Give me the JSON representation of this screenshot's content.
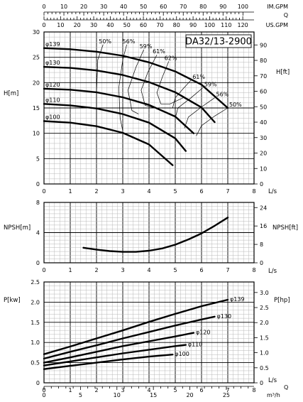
{
  "top_scales": {
    "q_label": "Q",
    "imp_gpm": {
      "unit": "IM.GPM",
      "ticks": [
        "0",
        "10",
        "20",
        "30",
        "40",
        "50",
        "60",
        "70",
        "80",
        "90",
        "100"
      ]
    },
    "us_gpm": {
      "unit": "US.GPM",
      "ticks": [
        "0",
        "10",
        "20",
        "30",
        "40",
        "50",
        "60",
        "70",
        "80",
        "90",
        "100",
        "110",
        "120"
      ]
    }
  },
  "bottom_scale": {
    "q_label": "Q",
    "unit": "m³/h",
    "ticks": [
      "0",
      "5",
      "10",
      "15",
      "20",
      "25"
    ]
  },
  "chart_data": [
    {
      "type": "line",
      "title": "DA32/13-2900",
      "xlabel": "L/s",
      "ylabel": "H[m]",
      "y2label": "H[ft]",
      "xlim": [
        0,
        8
      ],
      "ylim": [
        0,
        30
      ],
      "y2lim": [
        0,
        98.4
      ],
      "xticks": [
        "0",
        "1",
        "2",
        "3",
        "4",
        "5",
        "6",
        "7",
        "8"
      ],
      "yticks": [
        "0",
        "5",
        "10",
        "15",
        "20",
        "25",
        "30"
      ],
      "y2ticks": [
        "0",
        "10",
        "20",
        "30",
        "40",
        "50",
        "60",
        "70",
        "80",
        "90"
      ],
      "series": [
        {
          "name": "φ139",
          "x": [
            0,
            1,
            2,
            3,
            4,
            5,
            6,
            7
          ],
          "y": [
            26.8,
            26.6,
            26.1,
            25.3,
            24.0,
            22.2,
            19.6,
            15.0
          ]
        },
        {
          "name": "φ130",
          "x": [
            0,
            1,
            2,
            3,
            4,
            5,
            6,
            6.5
          ],
          "y": [
            23.1,
            22.9,
            22.4,
            21.5,
            20.1,
            18.1,
            15.1,
            12.2
          ]
        },
        {
          "name": "φ120",
          "x": [
            0,
            1,
            2,
            3,
            4,
            5,
            5.7
          ],
          "y": [
            18.8,
            18.6,
            18.1,
            17.1,
            15.6,
            13.3,
            10.0
          ]
        },
        {
          "name": "φ110",
          "x": [
            0,
            1,
            2,
            3,
            4,
            5,
            5.4
          ],
          "y": [
            15.8,
            15.5,
            14.9,
            13.8,
            12.1,
            9.0,
            6.5
          ]
        },
        {
          "name": "φ100",
          "x": [
            0,
            1,
            2,
            3,
            4,
            4.9
          ],
          "y": [
            12.4,
            12.1,
            11.4,
            10.1,
            7.8,
            3.7
          ]
        }
      ],
      "efficiency_contours": [
        {
          "label": "50%",
          "x": [
            2.25,
            2.05,
            2.0,
            2.0
          ],
          "y": [
            27.5,
            24.5,
            18.0,
            11.0
          ]
        },
        {
          "label": "56%",
          "x": [
            3.15,
            3.0,
            2.85,
            2.9,
            3.0
          ],
          "y": [
            27.5,
            24.5,
            19.0,
            13.0,
            10.5
          ]
        },
        {
          "label": "59%",
          "x": [
            3.8,
            3.5,
            3.2,
            3.35,
            3.6
          ],
          "y": [
            26.5,
            23.0,
            18.5,
            14.5,
            13.8
          ]
        },
        {
          "label": "61%",
          "x": [
            4.3,
            3.95,
            3.7,
            3.85,
            4.2
          ],
          "y": [
            25.5,
            22.0,
            18.5,
            15.5,
            15.0
          ]
        },
        {
          "label": "62%",
          "x": [
            4.75,
            4.5,
            4.3,
            4.45,
            4.8,
            5.3
          ],
          "y": [
            24.2,
            21.0,
            18.0,
            15.8,
            15.8,
            17.0
          ]
        },
        {
          "label": "61%",
          "x": [
            5.6,
            5.3,
            5.0,
            4.9
          ],
          "y": [
            20.5,
            18.8,
            17.0,
            15.0
          ]
        },
        {
          "label": "59%",
          "x": [
            6.05,
            5.6,
            5.1,
            5.0
          ],
          "y": [
            19.0,
            17.0,
            15.0,
            13.0
          ]
        },
        {
          "label": "56%",
          "x": [
            6.5,
            6.0,
            5.5,
            5.35
          ],
          "y": [
            17.0,
            15.2,
            13.2,
            11.0
          ]
        },
        {
          "label": "50%",
          "x": [
            7.0,
            6.5,
            6.0,
            5.8
          ],
          "y": [
            15.0,
            13.4,
            11.5,
            9.5
          ]
        }
      ]
    },
    {
      "type": "line",
      "xlabel": "L/s",
      "ylabel": "NPSH[m]",
      "y2label": "NPSH[ft]",
      "xlim": [
        0,
        8
      ],
      "ylim": [
        0,
        8
      ],
      "y2lim": [
        0,
        26.24
      ],
      "xticks": [
        "0",
        "1",
        "2",
        "3",
        "4",
        "5",
        "6",
        "7",
        "8"
      ],
      "yticks": [
        "0",
        "4",
        "8"
      ],
      "y2ticks": [
        "0",
        "8",
        "16",
        "24"
      ],
      "series": [
        {
          "x": [
            1.5,
            2,
            2.5,
            3,
            3.5,
            4,
            4.5,
            5,
            5.5,
            6,
            6.5,
            7
          ],
          "y": [
            2.0,
            1.75,
            1.55,
            1.45,
            1.45,
            1.6,
            1.9,
            2.4,
            3.1,
            3.9,
            4.9,
            6.0
          ]
        }
      ]
    },
    {
      "type": "line",
      "xlabel": "L/s",
      "ylabel": "P[kw]",
      "y2label": "P[hp]",
      "xlim": [
        0,
        8
      ],
      "ylim": [
        0,
        2.5
      ],
      "y2lim": [
        0,
        3.35
      ],
      "xticks": [
        "0",
        "1",
        "2",
        "3",
        "4",
        "5",
        "6",
        "7",
        "8"
      ],
      "yticks": [
        "0",
        "0.5",
        "1.0",
        "1.5",
        "2.0",
        "2.5"
      ],
      "y2ticks": [
        "0",
        "0.5",
        "1.0",
        "1.5",
        "2.0",
        "2.5",
        "3.0"
      ],
      "series": [
        {
          "name": "φ139",
          "x": [
            0,
            1,
            2,
            3,
            4,
            5,
            6,
            7
          ],
          "y": [
            0.71,
            0.9,
            1.1,
            1.3,
            1.51,
            1.71,
            1.9,
            2.06
          ]
        },
        {
          "name": "φ130",
          "x": [
            0,
            1,
            2,
            3,
            4,
            5,
            6,
            6.5
          ],
          "y": [
            0.6,
            0.77,
            0.93,
            1.1,
            1.26,
            1.42,
            1.57,
            1.64
          ]
        },
        {
          "name": "φ120",
          "x": [
            0,
            1,
            2,
            3,
            4,
            5,
            5.7
          ],
          "y": [
            0.5,
            0.63,
            0.77,
            0.91,
            1.03,
            1.15,
            1.24
          ]
        },
        {
          "name": "φ110",
          "x": [
            0,
            1,
            2,
            3,
            4,
            5,
            5.4
          ],
          "y": [
            0.43,
            0.53,
            0.63,
            0.73,
            0.82,
            0.91,
            0.94
          ]
        },
        {
          "name": "φ100",
          "x": [
            0,
            1,
            2,
            3,
            4,
            4.9
          ],
          "y": [
            0.34,
            0.42,
            0.5,
            0.58,
            0.65,
            0.7
          ]
        }
      ]
    }
  ]
}
